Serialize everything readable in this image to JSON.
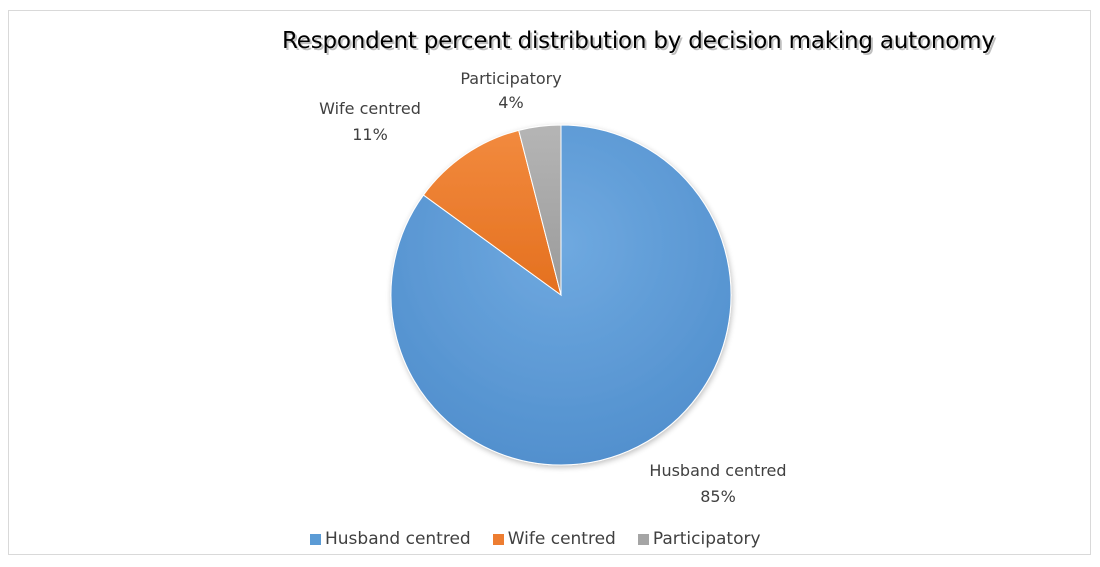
{
  "chart_data": {
    "type": "pie",
    "title": "Respondent percent  distribution by decision making autonomy",
    "slices": [
      {
        "label": "Husband centred",
        "value": 85,
        "display": "85%",
        "color": "#5b9bd5"
      },
      {
        "label": "Wife centred",
        "value": 11,
        "display": "11%",
        "color": "#ed7d31"
      },
      {
        "label": "Participatory",
        "value": 4,
        "display": "4%",
        "color": "#a5a5a5"
      }
    ],
    "legend": {
      "position": "bottom"
    }
  }
}
